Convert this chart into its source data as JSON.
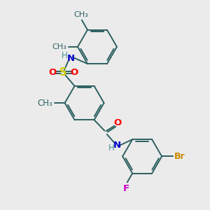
{
  "bg_color": "#ebebeb",
  "bond_color": "#2d6060",
  "S_color": "#cccc00",
  "O_color": "#ff0000",
  "N_color": "#0000cc",
  "H_color": "#4a9090",
  "F_color": "#cc00cc",
  "Br_color": "#cc8800",
  "label_fontsize": 9.5,
  "small_fontsize": 8.5,
  "bond_lw": 1.4,
  "figsize": [
    3.0,
    3.0
  ],
  "dpi": 100,
  "xlim": [
    0,
    10
  ],
  "ylim": [
    0,
    10
  ]
}
